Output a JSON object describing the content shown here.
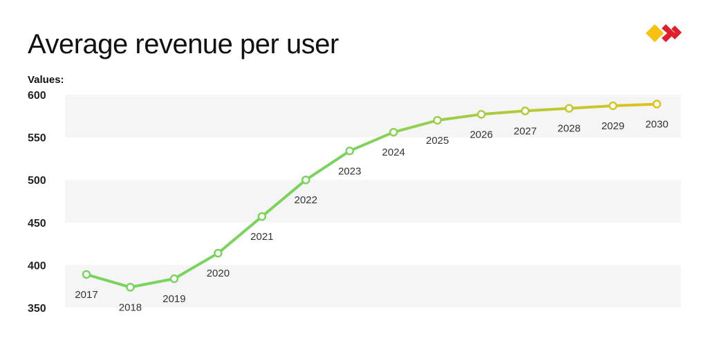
{
  "title": "Average revenue per user",
  "colors": {
    "band": "#f5f5f5",
    "line_start": "#7ad35f",
    "line_end": "#e1c21b",
    "logo_yellow": "#f5c211",
    "logo_red": "#e0202c"
  },
  "chart_data": {
    "type": "line",
    "title": "Average revenue per user",
    "ylabel": "Values:",
    "xlabel": "",
    "ylim": [
      350,
      600
    ],
    "yticks": [
      350,
      400,
      450,
      500,
      550,
      600
    ],
    "grid": "alternating horizontal bands",
    "x": [
      "2017",
      "2018",
      "2019",
      "2020",
      "2021",
      "2022",
      "2023",
      "2024",
      "2025",
      "2026",
      "2027",
      "2028",
      "2029",
      "2030"
    ],
    "series": [
      {
        "values": [
          389,
          374,
          384,
          414,
          457,
          500,
          534,
          556,
          570,
          577,
          581,
          584,
          587,
          589
        ]
      }
    ]
  }
}
